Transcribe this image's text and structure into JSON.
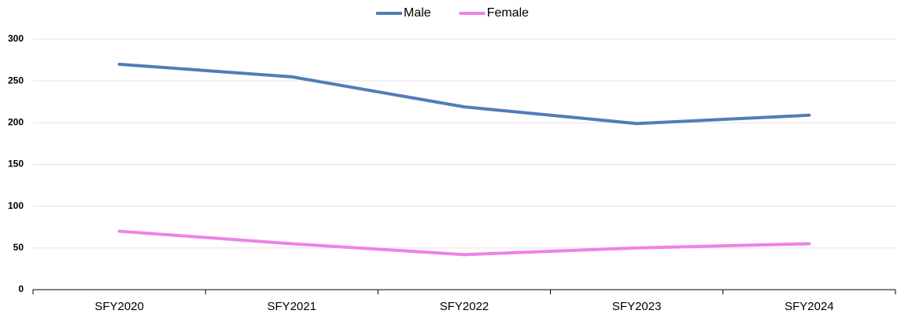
{
  "chart_data": {
    "type": "line",
    "categories": [
      "SFY2020",
      "SFY2021",
      "SFY2022",
      "SFY2023",
      "SFY2024"
    ],
    "series": [
      {
        "name": "Male",
        "color": "#4f7db8",
        "values": [
          270,
          255,
          219,
          199,
          209
        ]
      },
      {
        "name": "Female",
        "color": "#ee82e6",
        "values": [
          70,
          55,
          42,
          50,
          55
        ]
      }
    ],
    "ylim": [
      0,
      300
    ],
    "yticks": [
      0,
      50,
      100,
      150,
      200,
      250,
      300
    ],
    "grid": true,
    "legend": "top"
  }
}
